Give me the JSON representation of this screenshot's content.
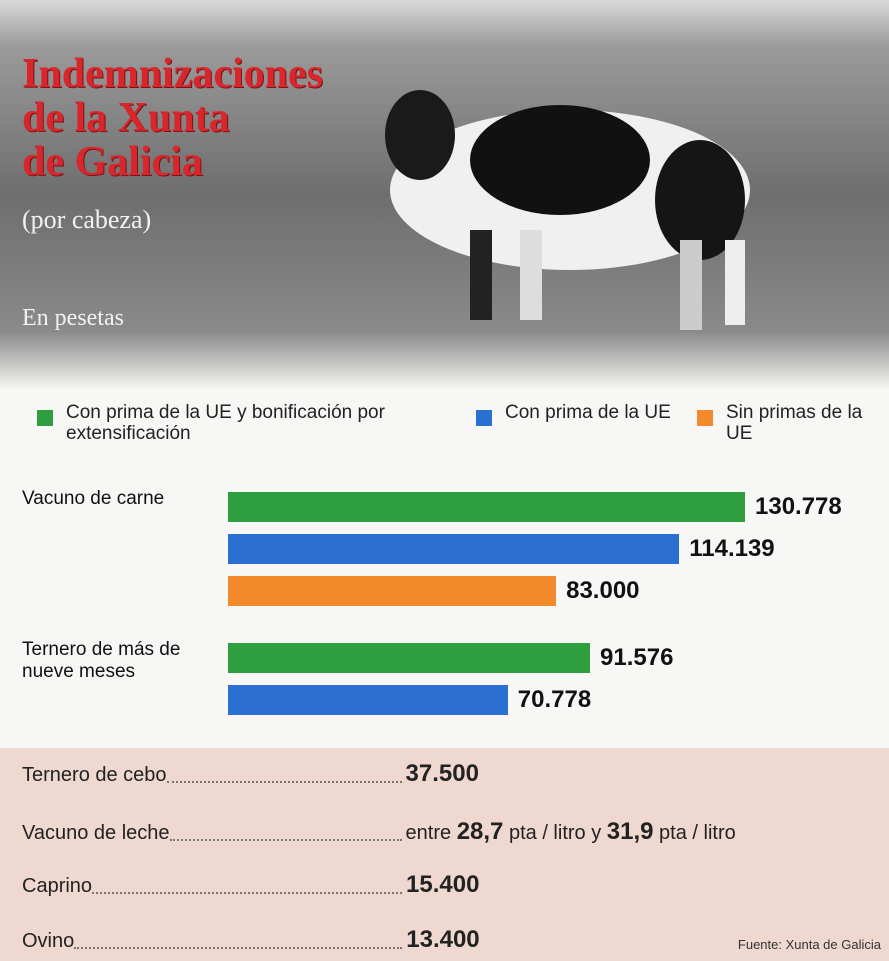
{
  "chart_data": {
    "type": "bar",
    "orientation": "horizontal",
    "title_lines": [
      "Indemnizaciones",
      "de la Xunta",
      "de Galicia"
    ],
    "subtitle": "(por cabeza)",
    "unit": "En pesetas",
    "categories": [
      "Vacuno de carne",
      "Ternero de más de nueve meses"
    ],
    "series": [
      {
        "name": "Con prima de la UE y bonificación por extensificación",
        "color": "#2f9e3f",
        "values": [
          130778,
          91576
        ],
        "value_labels": [
          "130.778",
          "91.576"
        ]
      },
      {
        "name": "Con prima de la UE",
        "color": "#2b6fd1",
        "values": [
          114139,
          70778
        ],
        "value_labels": [
          "114.139",
          "70.778"
        ]
      },
      {
        "name": "Sin primas de la UE",
        "color": "#f28a2c",
        "values": [
          83000,
          null
        ],
        "value_labels": [
          "83.000",
          null
        ]
      }
    ]
  },
  "table": {
    "rows": [
      {
        "label": "Ternero de cebo",
        "value": [
          "37.500"
        ]
      },
      {
        "label": "Vacuno de leche",
        "value": [
          "entre ",
          "28,7",
          " pta / litro y ",
          "31,9",
          " pta / litro"
        ]
      },
      {
        "label": "Caprino",
        "value": [
          "15.400"
        ]
      },
      {
        "label": "Ovino",
        "value": [
          "13.400"
        ]
      }
    ],
    "source": "Fuente: Xunta de Galicia"
  }
}
